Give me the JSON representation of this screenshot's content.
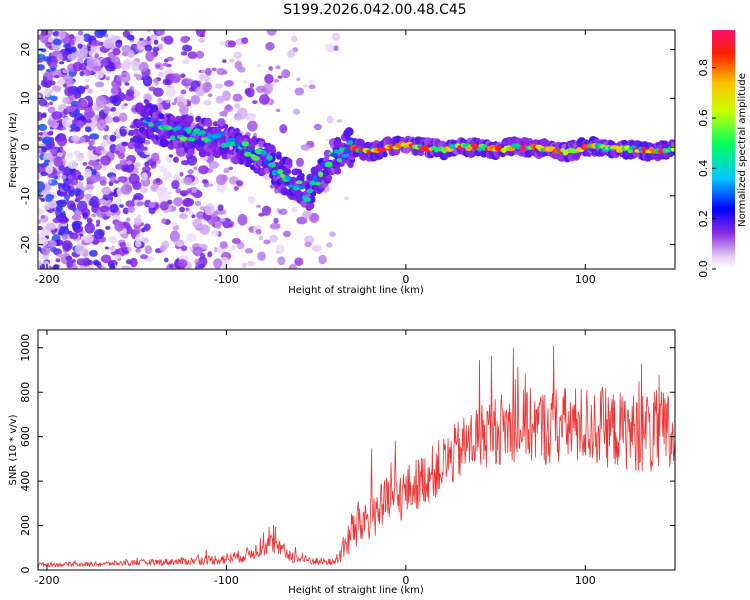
{
  "title": "S199.2026.042.00.48.C45",
  "chart_data": [
    {
      "type": "heatmap",
      "name": "spectrogram",
      "xlabel": "Height of straight line (km)",
      "ylabel": "Frequency (Hz)",
      "xlim": [
        -205,
        150
      ],
      "ylim": [
        -25,
        24
      ],
      "xticks": [
        -200,
        -100,
        0,
        100
      ],
      "yticks": [
        -20,
        -10,
        0,
        10,
        20
      ],
      "colorbar": {
        "label": "Normalized spectral amplitude",
        "range": [
          0.0,
          0.95
        ],
        "ticks": [
          0.0,
          0.2,
          0.4,
          0.6,
          0.8
        ],
        "tick_labels": [
          "0.0",
          "0.2",
          "0.4",
          "0.6",
          "0.8"
        ]
      },
      "ridge": {
        "x": [
          -145,
          -130,
          -120,
          -110,
          -100,
          -90,
          -80,
          -70,
          -60,
          -55,
          -50,
          -45,
          -40,
          -35,
          -30,
          -25,
          -20,
          -10,
          0,
          10,
          20,
          30,
          40,
          50,
          60,
          70,
          80,
          90,
          100,
          110,
          120,
          130,
          140,
          150
        ],
        "y": [
          5,
          3,
          2.5,
          2,
          1.5,
          0,
          -2,
          -5,
          -8,
          -11,
          -7,
          -4,
          -2,
          -1,
          0,
          -0.5,
          -1,
          0,
          0.5,
          0,
          -0.5,
          0,
          0,
          -0.5,
          0,
          0,
          -0.5,
          -1,
          0,
          0,
          -0.5,
          -0.5,
          -1,
          0
        ]
      }
    },
    {
      "type": "line",
      "name": "snr",
      "xlabel": "Height of straight line (km)",
      "ylabel": "SNR (10 * v/v)",
      "xlim": [
        -205,
        150
      ],
      "ylim": [
        0,
        1080
      ],
      "xticks": [
        -200,
        -100,
        0,
        100
      ],
      "yticks": [
        0,
        200,
        400,
        600,
        800,
        1000
      ],
      "color": "#ee3333",
      "envelope": {
        "x": [
          -205,
          -180,
          -160,
          -140,
          -120,
          -100,
          -90,
          -80,
          -75,
          -70,
          -60,
          -50,
          -40,
          -35,
          -30,
          -20,
          -10,
          0,
          10,
          20,
          30,
          40,
          50,
          60,
          70,
          80,
          90,
          100,
          110,
          120,
          130,
          140,
          150
        ],
        "mean": [
          25,
          25,
          30,
          35,
          40,
          50,
          65,
          100,
          120,
          90,
          50,
          40,
          35,
          90,
          170,
          250,
          300,
          350,
          410,
          470,
          540,
          600,
          630,
          650,
          650,
          640,
          650,
          650,
          640,
          630,
          620,
          610,
          600
        ],
        "noise": [
          10,
          10,
          12,
          15,
          18,
          25,
          30,
          40,
          45,
          40,
          25,
          18,
          15,
          60,
          110,
          120,
          120,
          120,
          120,
          130,
          140,
          150,
          160,
          170,
          170,
          175,
          180,
          180,
          180,
          175,
          180,
          200,
          220
        ]
      }
    }
  ]
}
